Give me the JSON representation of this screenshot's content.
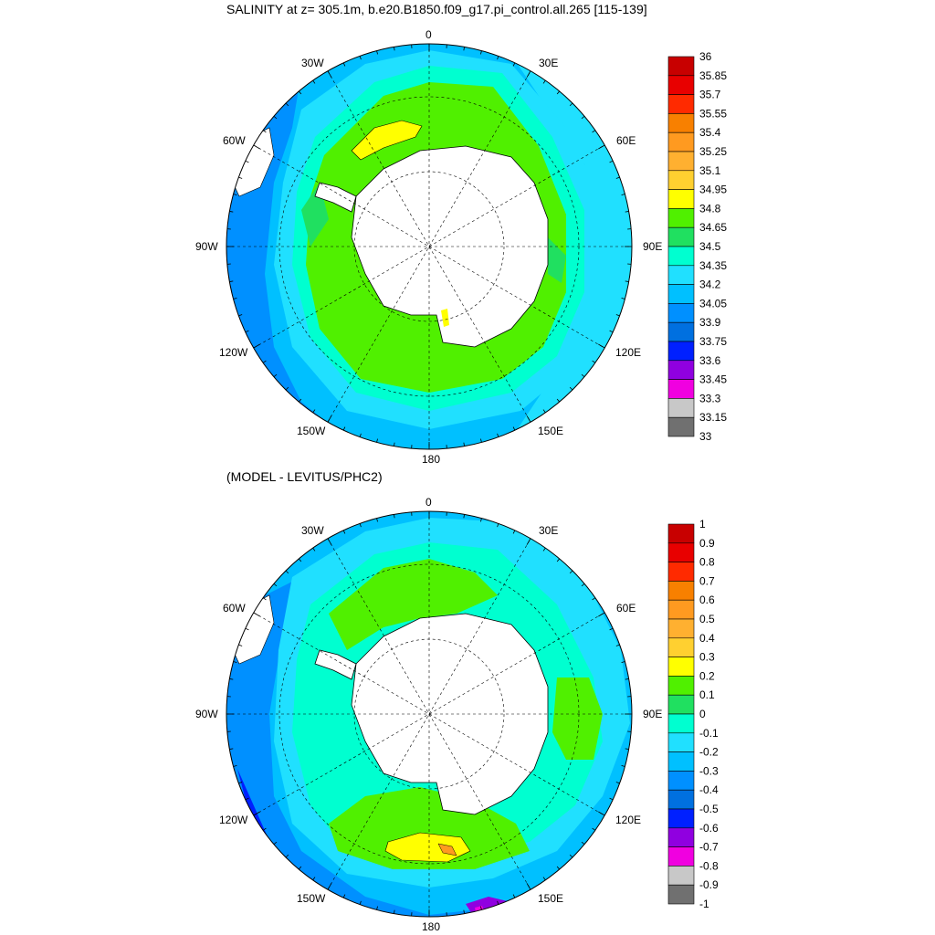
{
  "top": {
    "title": "SALINITY at z= 305.1m, b.e20.B1850.f09_g17.pi_control.all.265 [115-139]",
    "longitude_labels": [
      "0",
      "30E",
      "60E",
      "90E",
      "120E",
      "150E",
      "180",
      "150W",
      "120W",
      "90W",
      "60W",
      "30W"
    ],
    "colorbar_labels": [
      "36",
      "35.85",
      "35.7",
      "35.55",
      "35.4",
      "35.25",
      "35.1",
      "34.95",
      "34.8",
      "34.65",
      "34.5",
      "34.35",
      "34.2",
      "34.05",
      "33.9",
      "33.75",
      "33.6",
      "33.45",
      "33.3",
      "33.15",
      "33"
    ],
    "colorbar_colors": [
      "#c80000",
      "#e80000",
      "#ff2a00",
      "#f88000",
      "#ff9a20",
      "#ffb030",
      "#ffd030",
      "#ffff00",
      "#50f000",
      "#20e060",
      "#00ffd0",
      "#20e0ff",
      "#00c0ff",
      "#0090ff",
      "#0070e0",
      "#0020ff",
      "#9000e0",
      "#f000e0",
      "#c8c8c8",
      "#707070"
    ]
  },
  "bottom": {
    "title": "(MODEL - LEVITUS/PHC2)",
    "longitude_labels": [
      "0",
      "30E",
      "60E",
      "90E",
      "120E",
      "150E",
      "180",
      "150W",
      "120W",
      "90W",
      "60W",
      "30W"
    ],
    "colorbar_labels": [
      "1",
      "0.9",
      "0.8",
      "0.7",
      "0.6",
      "0.5",
      "0.4",
      "0.3",
      "0.2",
      "0.1",
      "0",
      "-0.1",
      "-0.2",
      "-0.3",
      "-0.4",
      "-0.5",
      "-0.6",
      "-0.7",
      "-0.8",
      "-0.9",
      "-1"
    ],
    "colorbar_colors": [
      "#c80000",
      "#e80000",
      "#ff2a00",
      "#f88000",
      "#ff9a20",
      "#ffb030",
      "#ffd030",
      "#ffff00",
      "#50f000",
      "#20e060",
      "#00ffd0",
      "#20e0ff",
      "#00c0ff",
      "#0090ff",
      "#0070e0",
      "#0020ff",
      "#9000e0",
      "#f000e0",
      "#c8c8c8",
      "#707070"
    ]
  }
}
